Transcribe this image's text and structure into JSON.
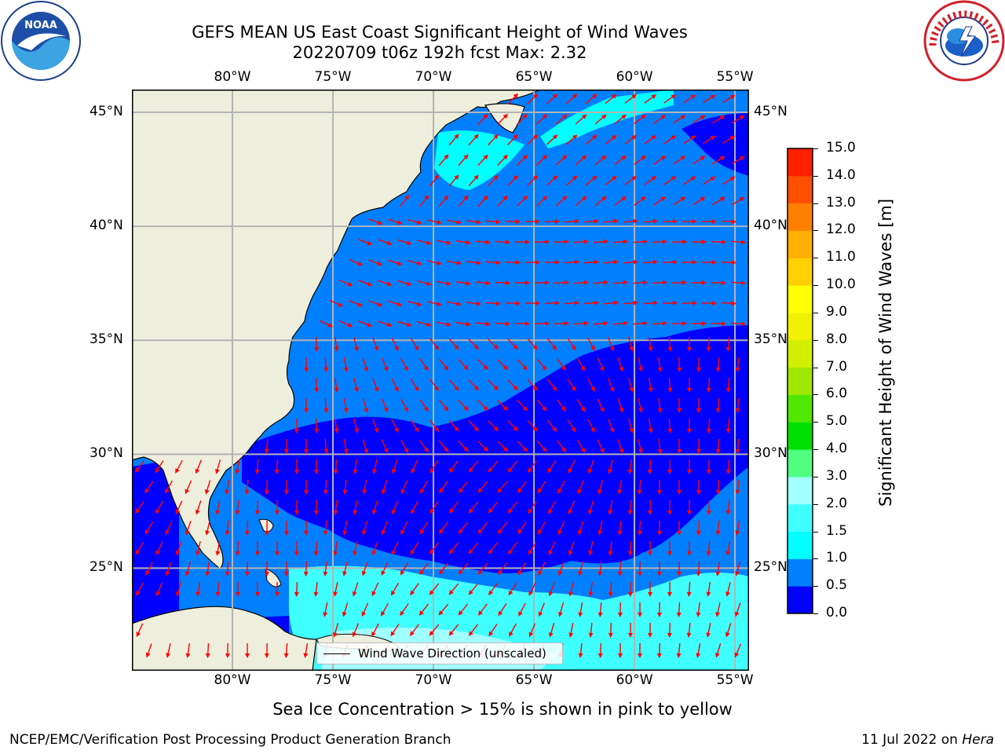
{
  "title": {
    "line1": "GEFS MEAN US East Coast Significant Height of Wind Waves",
    "line2": "20220709 t06z 192h fcst   Max: 2.32"
  },
  "logos": {
    "left": "noaa-logo",
    "right": "nws-logo"
  },
  "map": {
    "lon_labels": [
      "80°W",
      "75°W",
      "70°W",
      "65°W",
      "60°W",
      "55°W"
    ],
    "lat_labels": [
      "45°N",
      "40°N",
      "35°N",
      "30°N",
      "25°N"
    ],
    "lon_range": [
      -85,
      -54.3
    ],
    "lat_range": [
      20.5,
      46
    ],
    "land_color": "#eeeedc",
    "grid_color": "#b4b4b4",
    "arrow_color": "#ff0000",
    "legend_label": "Wind Wave Direction (unscaled)"
  },
  "colorbar": {
    "label": "Significant Height of Wind Waves [m]",
    "ticks": [
      "0.0",
      "0.5",
      "1.0",
      "1.5",
      "2.0",
      "3.0",
      "4.0",
      "5.0",
      "6.0",
      "7.0",
      "8.0",
      "9.0",
      "10.0",
      "11.0",
      "12.0",
      "13.0",
      "14.0",
      "15.0"
    ],
    "colors": [
      "#0000ff",
      "#0080ff",
      "#00ffff",
      "#40ffff",
      "#a0ffff",
      "#50ff80",
      "#00e000",
      "#50e800",
      "#a0e800",
      "#d0f000",
      "#f0f000",
      "#ffff00",
      "#ffd000",
      "#ffb000",
      "#ff8000",
      "#ff5000",
      "#ff2000"
    ]
  },
  "ice_note": "Sea Ice Concentration > 15% is shown in pink to yellow",
  "footer": {
    "left": "NCEP/EMC/Verification Post Processing Product Generation Branch",
    "right_date": "11 Jul 2022 on ",
    "right_machine": "Hera"
  }
}
